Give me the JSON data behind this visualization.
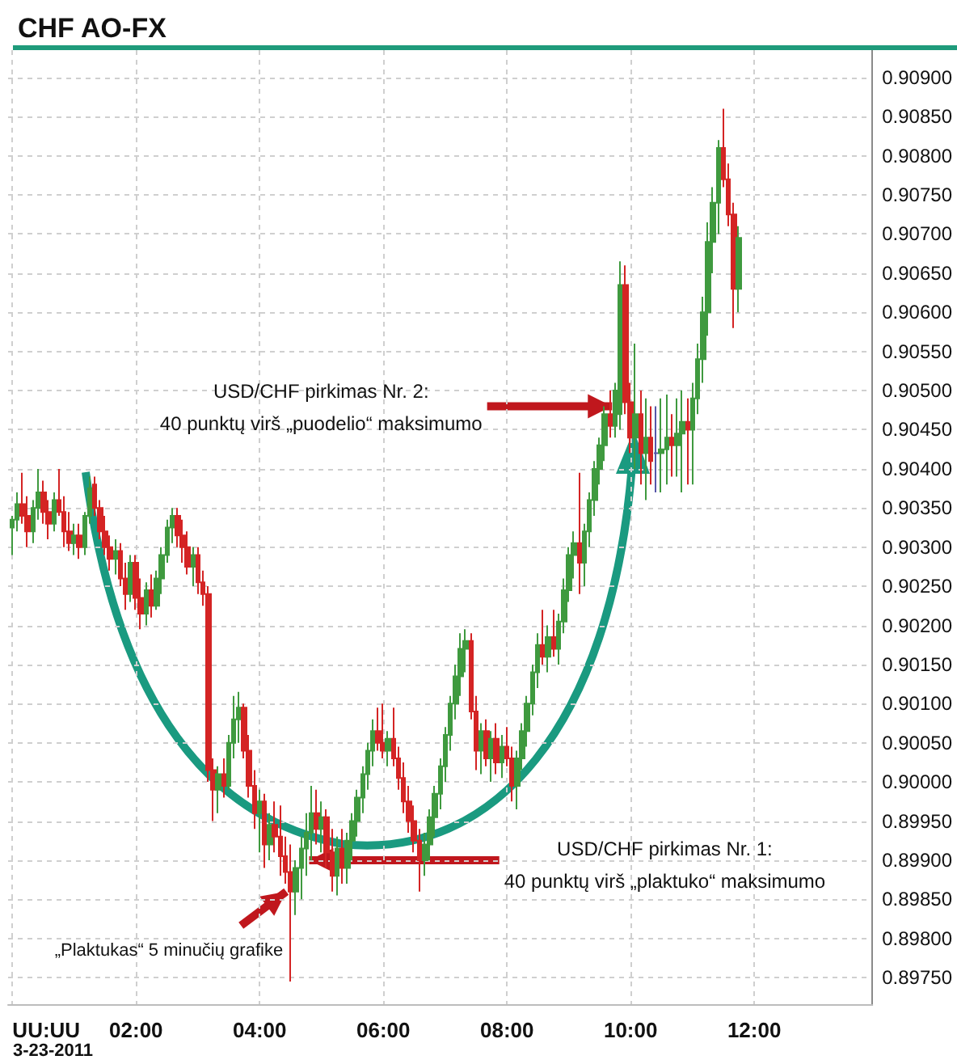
{
  "chart_data": {
    "type": "candlestick",
    "title": "CHF AO-FX",
    "x": [
      0,
      0.08,
      0.17,
      0.25,
      0.33,
      0.42,
      0.5,
      0.58,
      0.67,
      0.75,
      0.83,
      0.92,
      1,
      1.08,
      1.17,
      1.25,
      1.33,
      1.42,
      1.5,
      1.58,
      1.67,
      1.75,
      1.83,
      1.92,
      2,
      2.08,
      2.17,
      2.25,
      2.33,
      2.42,
      2.5,
      2.58,
      2.67,
      2.75,
      2.83,
      2.92,
      3,
      3.08,
      3.17,
      3.25,
      3.33,
      3.42,
      3.5,
      3.58,
      3.67,
      3.75,
      3.83,
      3.92,
      4,
      4.08,
      4.17,
      4.25,
      4.33,
      4.42,
      4.5,
      4.58,
      4.67,
      4.75,
      4.83,
      4.92,
      5,
      5.08,
      5.17,
      5.25,
      5.33,
      5.42,
      5.5,
      5.58,
      5.67,
      5.75,
      5.83,
      5.92,
      6,
      6.08,
      6.17,
      6.25,
      6.33,
      6.42,
      6.5,
      6.58,
      6.67,
      6.75,
      6.83,
      6.92,
      7,
      7.08,
      7.17,
      7.25,
      7.33,
      7.42,
      7.5,
      7.58,
      7.67,
      7.75,
      7.83,
      7.92,
      8,
      8.08,
      8.17,
      8.25,
      8.33,
      8.42,
      8.5,
      8.58,
      8.67,
      8.75,
      8.83,
      8.92,
      9,
      9.08,
      9.17,
      9.25,
      9.33,
      9.42,
      9.5,
      9.58,
      9.67,
      9.75,
      9.83,
      9.92,
      10,
      10.08,
      10.17,
      10.25,
      10.33,
      10.42,
      10.5,
      10.58,
      10.67,
      10.75,
      10.83,
      10.92,
      11,
      11.08,
      11.17,
      11.25,
      11.33,
      11.42,
      11.5,
      11.58,
      11.67,
      11.75
    ],
    "ohlc": [
      [
        0.90325,
        0.9034,
        0.9029,
        0.90335
      ],
      [
        0.90335,
        0.9037,
        0.9032,
        0.90355
      ],
      [
        0.90355,
        0.90395,
        0.9033,
        0.9034
      ],
      [
        0.9034,
        0.90365,
        0.903,
        0.9032
      ],
      [
        0.9032,
        0.9036,
        0.90305,
        0.9035
      ],
      [
        0.9035,
        0.904,
        0.90335,
        0.9037
      ],
      [
        0.9037,
        0.90385,
        0.9033,
        0.90345
      ],
      [
        0.90345,
        0.9036,
        0.9031,
        0.9033
      ],
      [
        0.9033,
        0.9037,
        0.9032,
        0.9036
      ],
      [
        0.9036,
        0.904,
        0.9034,
        0.90345
      ],
      [
        0.90345,
        0.90365,
        0.903,
        0.9032
      ],
      [
        0.9032,
        0.90345,
        0.90295,
        0.90305
      ],
      [
        0.90305,
        0.9033,
        0.9029,
        0.90315
      ],
      [
        0.90315,
        0.9033,
        0.90285,
        0.903
      ],
      [
        0.903,
        0.90345,
        0.9029,
        0.9034
      ],
      [
        0.9034,
        0.9039,
        0.9033,
        0.90375
      ],
      [
        0.9038,
        0.9039,
        0.9034,
        0.9035
      ],
      [
        0.9035,
        0.9036,
        0.9031,
        0.9032
      ],
      [
        0.9032,
        0.9034,
        0.9029,
        0.903
      ],
      [
        0.903,
        0.90315,
        0.9027,
        0.90285
      ],
      [
        0.90285,
        0.9031,
        0.90265,
        0.90295
      ],
      [
        0.90295,
        0.90305,
        0.9025,
        0.9026
      ],
      [
        0.9026,
        0.9028,
        0.9022,
        0.9024
      ],
      [
        0.9024,
        0.9029,
        0.9023,
        0.9028
      ],
      [
        0.9028,
        0.9029,
        0.9022,
        0.90235
      ],
      [
        0.90235,
        0.9026,
        0.90195,
        0.90215
      ],
      [
        0.90215,
        0.90255,
        0.902,
        0.90245
      ],
      [
        0.90245,
        0.90265,
        0.9021,
        0.90225
      ],
      [
        0.90225,
        0.9027,
        0.9022,
        0.9026
      ],
      [
        0.9026,
        0.903,
        0.9024,
        0.9029
      ],
      [
        0.9029,
        0.90335,
        0.9028,
        0.90325
      ],
      [
        0.90325,
        0.9035,
        0.90305,
        0.9034
      ],
      [
        0.9034,
        0.9035,
        0.903,
        0.90315
      ],
      [
        0.90315,
        0.90335,
        0.9028,
        0.903
      ],
      [
        0.903,
        0.9032,
        0.90265,
        0.90275
      ],
      [
        0.90275,
        0.903,
        0.9025,
        0.9029
      ],
      [
        0.9029,
        0.903,
        0.9024,
        0.90255
      ],
      [
        0.90255,
        0.9027,
        0.90225,
        0.9024
      ],
      [
        0.9024,
        0.9025,
        0.9,
        0.90015
      ],
      [
        0.90015,
        0.9003,
        0.8995,
        0.8999
      ],
      [
        0.8999,
        0.9002,
        0.8996,
        0.9001
      ],
      [
        0.9001,
        0.9003,
        0.8998,
        0.89995
      ],
      [
        0.89995,
        0.9006,
        0.8999,
        0.9005
      ],
      [
        0.9005,
        0.9011,
        0.9003,
        0.9008
      ],
      [
        0.9008,
        0.90115,
        0.9005,
        0.90095
      ],
      [
        0.90095,
        0.901,
        0.9003,
        0.9004
      ],
      [
        0.9004,
        0.9006,
        0.8998,
        0.89995
      ],
      [
        0.89995,
        0.90015,
        0.8994,
        0.8996
      ],
      [
        0.8996,
        0.8999,
        0.8991,
        0.89975
      ],
      [
        0.89975,
        0.89985,
        0.8989,
        0.8992
      ],
      [
        0.8992,
        0.8996,
        0.899,
        0.89945
      ],
      [
        0.89945,
        0.89975,
        0.8991,
        0.8993
      ],
      [
        0.8993,
        0.8997,
        0.8988,
        0.89905
      ],
      [
        0.89905,
        0.8993,
        0.8987,
        0.89885
      ],
      [
        0.89885,
        0.8992,
        0.89745,
        0.8986
      ],
      [
        0.8986,
        0.899,
        0.8983,
        0.8989
      ],
      [
        0.8989,
        0.8993,
        0.8985,
        0.89915
      ],
      [
        0.89915,
        0.8996,
        0.8988,
        0.89935
      ],
      [
        0.89935,
        0.89995,
        0.899,
        0.8996
      ],
      [
        0.8996,
        0.8999,
        0.8992,
        0.8994
      ],
      [
        0.8994,
        0.89975,
        0.8991,
        0.89955
      ],
      [
        0.89955,
        0.89965,
        0.8989,
        0.8991
      ],
      [
        0.8991,
        0.8994,
        0.8986,
        0.8988
      ],
      [
        0.8988,
        0.8993,
        0.89855,
        0.89915
      ],
      [
        0.89915,
        0.8994,
        0.8987,
        0.8989
      ],
      [
        0.8989,
        0.89935,
        0.8987,
        0.89925
      ],
      [
        0.89925,
        0.8996,
        0.899,
        0.8995
      ],
      [
        0.8995,
        0.8999,
        0.8993,
        0.8998
      ],
      [
        0.8998,
        0.9002,
        0.8996,
        0.9001
      ],
      [
        0.9001,
        0.9005,
        0.8999,
        0.9004
      ],
      [
        0.9004,
        0.9008,
        0.9002,
        0.90065
      ],
      [
        0.90065,
        0.90095,
        0.9004,
        0.9005
      ],
      [
        0.9005,
        0.901,
        0.9003,
        0.9004
      ],
      [
        0.9004,
        0.90065,
        0.9002,
        0.90055
      ],
      [
        0.90055,
        0.90095,
        0.9002,
        0.9003
      ],
      [
        0.9003,
        0.90045,
        0.8999,
        0.90005
      ],
      [
        0.90005,
        0.90025,
        0.8996,
        0.89975
      ],
      [
        0.89975,
        0.89995,
        0.89935,
        0.8995
      ],
      [
        0.8995,
        0.8997,
        0.8991,
        0.89925
      ],
      [
        0.89925,
        0.8994,
        0.8986,
        0.899
      ],
      [
        0.899,
        0.89935,
        0.8988,
        0.8992
      ],
      [
        0.8992,
        0.89965,
        0.899,
        0.89955
      ],
      [
        0.89955,
        0.89995,
        0.8993,
        0.89985
      ],
      [
        0.89985,
        0.9003,
        0.89965,
        0.9002
      ],
      [
        0.9002,
        0.9007,
        0.9,
        0.9006
      ],
      [
        0.9006,
        0.9011,
        0.9004,
        0.901
      ],
      [
        0.901,
        0.9015,
        0.9008,
        0.90135
      ],
      [
        0.90135,
        0.9019,
        0.9011,
        0.9017
      ],
      [
        0.9017,
        0.90195,
        0.9014,
        0.9018
      ],
      [
        0.9018,
        0.9019,
        0.9008,
        0.9009
      ],
      [
        0.9009,
        0.9011,
        0.90015,
        0.9004
      ],
      [
        0.9004,
        0.90075,
        0.9001,
        0.90065
      ],
      [
        0.90065,
        0.9008,
        0.9002,
        0.9003
      ],
      [
        0.9003,
        0.90065,
        0.9,
        0.90055
      ],
      [
        0.90055,
        0.90075,
        0.9001,
        0.90025
      ],
      [
        0.90025,
        0.9006,
        0.90005,
        0.90045
      ],
      [
        0.90045,
        0.9007,
        0.9002,
        0.9003
      ],
      [
        0.9003,
        0.90045,
        0.89975,
        0.89995
      ],
      [
        0.89995,
        0.9004,
        0.89965,
        0.9003
      ],
      [
        0.9003,
        0.90075,
        0.90015,
        0.90065
      ],
      [
        0.90065,
        0.9011,
        0.90045,
        0.901
      ],
      [
        0.901,
        0.9015,
        0.90085,
        0.9014
      ],
      [
        0.9014,
        0.9019,
        0.9012,
        0.90175
      ],
      [
        0.90175,
        0.9022,
        0.9015,
        0.9016
      ],
      [
        0.9016,
        0.902,
        0.9014,
        0.90185
      ],
      [
        0.90185,
        0.9022,
        0.9016,
        0.9017
      ],
      [
        0.9017,
        0.90215,
        0.9015,
        0.90205
      ],
      [
        0.90205,
        0.9026,
        0.9019,
        0.90245
      ],
      [
        0.90245,
        0.903,
        0.9023,
        0.9029
      ],
      [
        0.9029,
        0.9032,
        0.9026,
        0.90305
      ],
      [
        0.90305,
        0.90395,
        0.9024,
        0.9028
      ],
      [
        0.9028,
        0.9033,
        0.9025,
        0.9032
      ],
      [
        0.9032,
        0.9037,
        0.903,
        0.9036
      ],
      [
        0.9036,
        0.9041,
        0.9034,
        0.904
      ],
      [
        0.904,
        0.9044,
        0.9038,
        0.9043
      ],
      [
        0.9043,
        0.9048,
        0.9041,
        0.9047
      ],
      [
        0.9047,
        0.905,
        0.9044,
        0.90455
      ],
      [
        0.90455,
        0.9051,
        0.9044,
        0.905
      ],
      [
        0.9047,
        0.90665,
        0.9045,
        0.90635
      ],
      [
        0.90635,
        0.9066,
        0.9047,
        0.90485
      ],
      [
        0.90485,
        0.9051,
        0.9042,
        0.9044
      ],
      [
        0.9044,
        0.9056,
        0.904,
        0.9047
      ],
      [
        0.9047,
        0.905,
        0.9038,
        0.9042
      ],
      [
        0.9042,
        0.9049,
        0.9036,
        0.9044
      ],
      [
        0.9044,
        0.9048,
        0.9038,
        0.9041
      ],
      [
        0.9042,
        0.9048,
        0.9037,
        0.9042
      ],
      [
        0.9042,
        0.9049,
        0.9037,
        0.90425
      ],
      [
        0.90425,
        0.90495,
        0.9038,
        0.9044
      ],
      [
        0.9044,
        0.9047,
        0.9039,
        0.9043
      ],
      [
        0.9043,
        0.9049,
        0.9039,
        0.90445
      ],
      [
        0.90445,
        0.905,
        0.9037,
        0.9046
      ],
      [
        0.9046,
        0.9049,
        0.9038,
        0.9045
      ],
      [
        0.9045,
        0.9051,
        0.9038,
        0.9049
      ],
      [
        0.9049,
        0.9056,
        0.9047,
        0.9054
      ],
      [
        0.9054,
        0.9062,
        0.9051,
        0.906
      ],
      [
        0.906,
        0.90715,
        0.9057,
        0.9069
      ],
      [
        0.9069,
        0.9076,
        0.9065,
        0.9074
      ],
      [
        0.9074,
        0.9082,
        0.907,
        0.9081
      ],
      [
        0.9081,
        0.9086,
        0.9076,
        0.9077
      ],
      [
        0.9077,
        0.9079,
        0.9071,
        0.90725
      ],
      [
        0.90725,
        0.9074,
        0.9058,
        0.9063
      ],
      [
        0.9063,
        0.9071,
        0.906,
        0.90695
      ]
    ],
    "colors": [
      "#3f9a3f",
      "#3f9a3f",
      "#d42424",
      "#d42424",
      "#3f9a3f",
      "#3f9a3f",
      "#d42424",
      "#d42424",
      "#3f9a3f",
      "#d42424",
      "#d42424",
      "#d42424",
      "#3f9a3f",
      "#d42424",
      "#3f9a3f",
      "#3f9a3f",
      "#d42424",
      "#d42424",
      "#d42424",
      "#d42424",
      "#3f9a3f",
      "#d42424",
      "#d42424",
      "#3f9a3f",
      "#d42424",
      "#d42424",
      "#3f9a3f",
      "#d42424",
      "#3f9a3f",
      "#3f9a3f",
      "#3f9a3f",
      "#3f9a3f",
      "#d42424",
      "#d42424",
      "#d42424",
      "#3f9a3f",
      "#d42424",
      "#d42424",
      "#d42424",
      "#d42424",
      "#3f9a3f",
      "#d42424",
      "#3f9a3f",
      "#3f9a3f",
      "#3f9a3f",
      "#d42424",
      "#d42424",
      "#d42424",
      "#3f9a3f",
      "#d42424",
      "#3f9a3f",
      "#d42424",
      "#d42424",
      "#d42424",
      "#d42424",
      "#3f9a3f",
      "#3f9a3f",
      "#3f9a3f",
      "#3f9a3f",
      "#d42424",
      "#3f9a3f",
      "#d42424",
      "#d42424",
      "#3f9a3f",
      "#d42424",
      "#3f9a3f",
      "#3f9a3f",
      "#3f9a3f",
      "#3f9a3f",
      "#3f9a3f",
      "#3f9a3f",
      "#d42424",
      "#d42424",
      "#3f9a3f",
      "#d42424",
      "#d42424",
      "#d42424",
      "#d42424",
      "#d42424",
      "#d42424",
      "#3f9a3f",
      "#3f9a3f",
      "#3f9a3f",
      "#3f9a3f",
      "#3f9a3f",
      "#3f9a3f",
      "#3f9a3f",
      "#3f9a3f",
      "#3f9a3f",
      "#d42424",
      "#d42424",
      "#3f9a3f",
      "#d42424",
      "#3f9a3f",
      "#d42424",
      "#3f9a3f",
      "#d42424",
      "#d42424",
      "#3f9a3f",
      "#3f9a3f",
      "#3f9a3f",
      "#3f9a3f",
      "#3f9a3f",
      "#d42424",
      "#3f9a3f",
      "#d42424",
      "#3f9a3f",
      "#3f9a3f",
      "#3f9a3f",
      "#3f9a3f",
      "#d42424",
      "#3f9a3f",
      "#3f9a3f",
      "#3f9a3f",
      "#3f9a3f",
      "#3f9a3f",
      "#d42424",
      "#3f9a3f",
      "#3f9a3f",
      "#d42424",
      "#d42424",
      "#3f9a3f",
      "#d42424",
      "#3f9a3f",
      "#d42424",
      "#5656a8",
      "#3f9a3f",
      "#3f9a3f",
      "#d42424",
      "#3f9a3f",
      "#3f9a3f",
      "#d42424",
      "#3f9a3f",
      "#3f9a3f",
      "#3f9a3f",
      "#3f9a3f",
      "#3f9a3f",
      "#3f9a3f",
      "#d42424",
      "#d42424",
      "#d42424",
      "#3f9a3f"
    ],
    "xlim": [
      -0.07,
      13.91
    ],
    "xticks": [
      {
        "value": 0,
        "label": "UU:UU"
      },
      {
        "value": 2,
        "label": "02:00"
      },
      {
        "value": 4,
        "label": "04:00"
      },
      {
        "value": 6,
        "label": "06:00"
      },
      {
        "value": 8,
        "label": "08:00"
      },
      {
        "value": 10,
        "label": "10:00"
      },
      {
        "value": 12,
        "label": "12:00"
      }
    ],
    "ylim": [
      0.89715,
      0.90935
    ],
    "yticks": [
      {
        "value": 0.8975,
        "label": "0.89750"
      },
      {
        "value": 0.898,
        "label": "0.89800"
      },
      {
        "value": 0.8985,
        "label": "0.89850"
      },
      {
        "value": 0.899,
        "label": "0.89900"
      },
      {
        "value": 0.8995,
        "label": "0.89950"
      },
      {
        "value": 0.9,
        "label": "0.90000"
      },
      {
        "value": 0.9005,
        "label": "0.90050"
      },
      {
        "value": 0.901,
        "label": "0.90100"
      },
      {
        "value": 0.9015,
        "label": "0.90150"
      },
      {
        "value": 0.902,
        "label": "0.90200"
      },
      {
        "value": 0.9025,
        "label": "0.90250"
      },
      {
        "value": 0.903,
        "label": "0.90300"
      },
      {
        "value": 0.9035,
        "label": "0.90350"
      },
      {
        "value": 0.904,
        "label": "0.90400"
      },
      {
        "value": 0.9045,
        "label": "0.90450"
      },
      {
        "value": 0.905,
        "label": "0.90500"
      },
      {
        "value": 0.9055,
        "label": "0.90550"
      },
      {
        "value": 0.906,
        "label": "0.90600"
      },
      {
        "value": 0.9065,
        "label": "0.90650"
      },
      {
        "value": 0.907,
        "label": "0.90700"
      },
      {
        "value": 0.9075,
        "label": "0.90750"
      },
      {
        "value": 0.908,
        "label": "0.90800"
      },
      {
        "value": 0.9085,
        "label": "0.90850"
      },
      {
        "value": 0.909,
        "label": "0.90900"
      }
    ],
    "grid": true,
    "annotations": [
      {
        "text": "USD/CHF pirkimas Nr. 2:\n40 punktų virš „puodelio“ maksimumo",
        "x": 9.7,
        "y": 0.9048
      },
      {
        "text": "USD/CHF pirkimas Nr. 1:\n40 punktų virš „plaktuko“ maksimumo",
        "x": 4.8,
        "y": 0.899
      },
      {
        "text": "„Plaktukas“ 5 minučių grafike",
        "x": 4.43,
        "y": 0.8986
      },
      "3-23-2011"
    ]
  }
}
